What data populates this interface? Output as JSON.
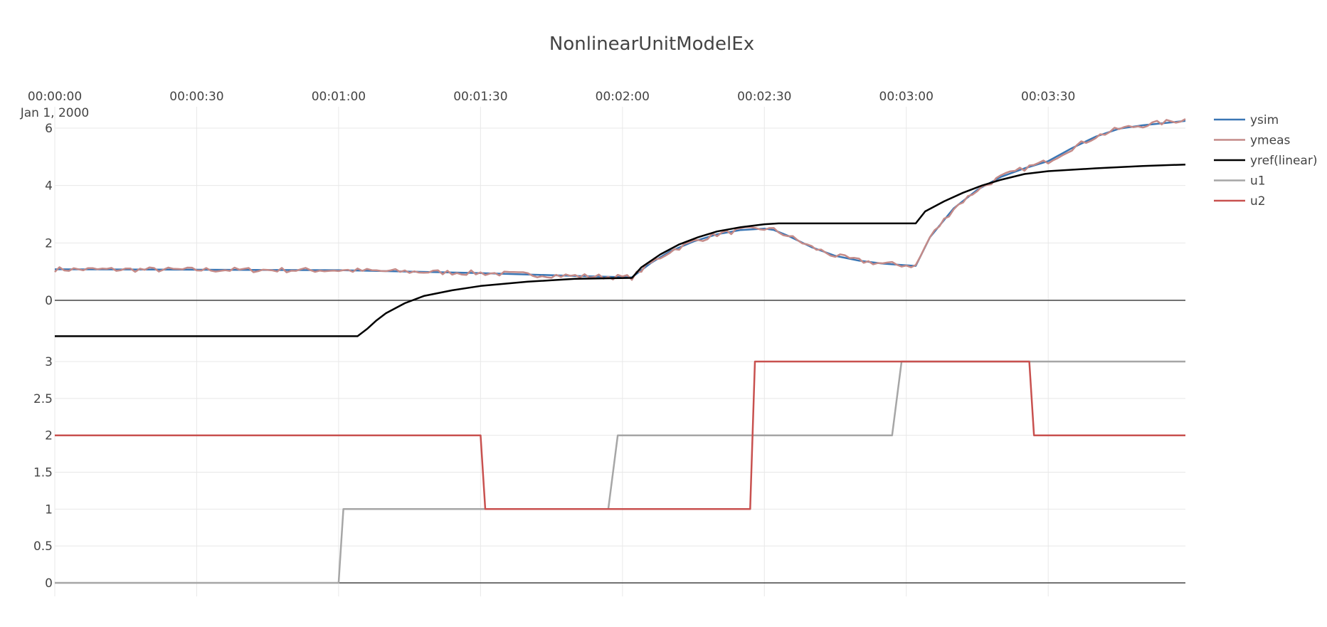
{
  "chart_data": {
    "type": "line",
    "title": "NonlinearUnitModelEx",
    "x_axis": {
      "ticks": [
        "00:00:00",
        "00:00:30",
        "00:01:00",
        "00:01:30",
        "00:02:00",
        "00:02:30",
        "00:03:00",
        "00:03:30"
      ],
      "tick_seconds": [
        0,
        30,
        60,
        90,
        120,
        150,
        180,
        210
      ],
      "date_label": "Jan 1, 2000",
      "range_seconds": [
        0,
        239
      ],
      "position": "top"
    },
    "subplots": [
      {
        "name": "outputs",
        "y_ticks": [
          0,
          2,
          4,
          6
        ],
        "ylim": [
          -1.3,
          6.3
        ],
        "series": [
          {
            "name": "ysim",
            "color": "#3a76b4",
            "width": 2.5,
            "x": [
              0,
              60,
              90,
              110,
              122,
              126,
              130,
              135,
              140,
              145,
              150,
              152,
              155,
              160,
              165,
              170,
              175,
              180,
              182,
              185,
              190,
              195,
              200,
              205,
              210,
              215,
              220,
              225,
              230,
              239
            ],
            "y": [
              1.08,
              1.05,
              0.95,
              0.85,
              0.8,
              1.3,
              1.7,
              2.05,
              2.3,
              2.45,
              2.5,
              2.45,
              2.25,
              1.85,
              1.55,
              1.38,
              1.28,
              1.22,
              1.2,
              2.2,
              3.2,
              3.85,
              4.3,
              4.6,
              4.85,
              5.3,
              5.7,
              5.98,
              6.1,
              6.25
            ]
          },
          {
            "name": "ymeas",
            "color": "#c48a88",
            "width": 2.5,
            "noisy": true,
            "x": [
              0,
              60,
              90,
              110,
              122,
              126,
              130,
              135,
              140,
              145,
              150,
              152,
              155,
              160,
              165,
              170,
              175,
              180,
              182,
              185,
              190,
              195,
              200,
              205,
              210,
              215,
              220,
              225,
              230,
              239
            ],
            "y": [
              1.08,
              1.05,
              0.95,
              0.85,
              0.8,
              1.3,
              1.7,
              2.05,
              2.3,
              2.45,
              2.5,
              2.45,
              2.25,
              1.85,
              1.55,
              1.38,
              1.28,
              1.22,
              1.2,
              2.2,
              3.2,
              3.85,
              4.3,
              4.6,
              4.85,
              5.3,
              5.7,
              5.98,
              6.1,
              6.3
            ]
          },
          {
            "name": "yref(linear)",
            "color": "#000000",
            "width": 2.5,
            "x": [
              0,
              64,
              66,
              68,
              70,
              74,
              78,
              84,
              90,
              100,
              110,
              122,
              124,
              128,
              132,
              136,
              140,
              145,
              150,
              153,
              160,
              170,
              182,
              184,
              188,
              192,
              196,
              200,
              205,
              210,
              220,
              230,
              239
            ],
            "y": [
              -1.25,
              -1.25,
              -1.0,
              -0.7,
              -0.45,
              -0.1,
              0.15,
              0.35,
              0.5,
              0.65,
              0.75,
              0.78,
              1.15,
              1.6,
              1.95,
              2.2,
              2.4,
              2.55,
              2.65,
              2.68,
              2.68,
              2.68,
              2.68,
              3.1,
              3.45,
              3.75,
              4.0,
              4.2,
              4.4,
              4.5,
              4.6,
              4.68,
              4.73
            ]
          }
        ]
      },
      {
        "name": "inputs",
        "y_ticks": [
          0,
          0.5,
          1,
          1.5,
          2,
          2.5,
          3
        ],
        "y_tick_labels": [
          "0",
          "0.5",
          "1",
          "1.5",
          "2",
          "2.5",
          "3"
        ],
        "ylim": [
          -0.17,
          3.0
        ],
        "series": [
          {
            "name": "u1",
            "color": "#a6a6a6",
            "width": 2.5,
            "x": [
              0,
              60,
              61,
              117,
              119,
              177,
              179,
              239
            ],
            "y": [
              0,
              0,
              1,
              1,
              2,
              2,
              3,
              3
            ]
          },
          {
            "name": "u2",
            "color": "#c8514f",
            "width": 2.5,
            "x": [
              0,
              90,
              91,
              147,
              148,
              206,
              207,
              239
            ],
            "y": [
              2,
              2,
              1,
              1,
              3,
              3,
              2,
              2
            ]
          }
        ]
      }
    ],
    "legend": {
      "position": "top-right",
      "entries": [
        "ysim",
        "ymeas",
        "yref(linear)",
        "u1",
        "u2"
      ]
    },
    "grid": true
  }
}
